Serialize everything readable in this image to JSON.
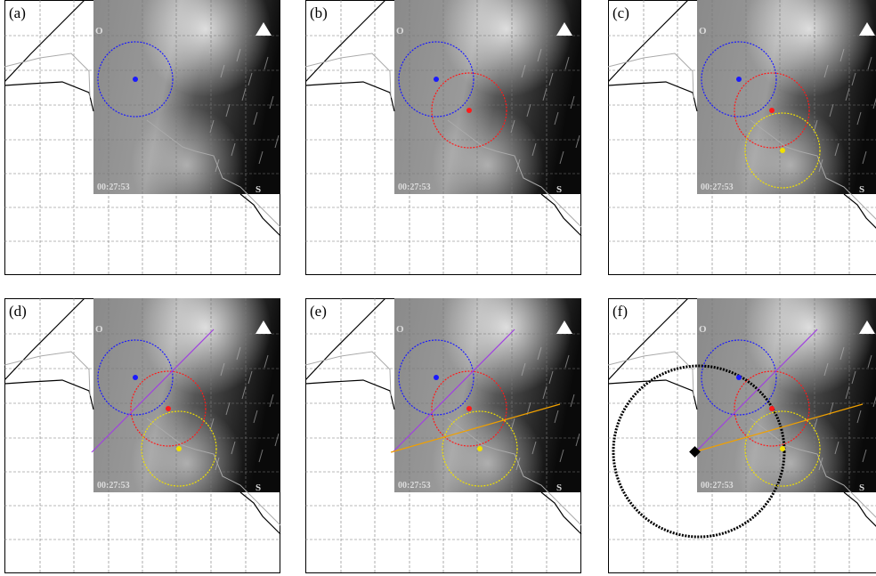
{
  "panels": [
    {
      "label": "(a)",
      "time": "00:27:53",
      "top_marker": "O",
      "bottom_marker": "S"
    },
    {
      "label": "(b)",
      "time": "00:27:53",
      "top_marker": "O",
      "bottom_marker": "S"
    },
    {
      "label": "(c)",
      "time": "00:27:53",
      "top_marker": "O",
      "bottom_marker": "S"
    },
    {
      "label": "(d)",
      "time": "00:27:53",
      "top_marker": "O",
      "bottom_marker": "S"
    },
    {
      "label": "(e)",
      "time": "00:27:53",
      "top_marker": "O",
      "bottom_marker": "S"
    },
    {
      "label": "(f)",
      "time": "00:27:53",
      "top_marker": "O",
      "bottom_marker": "S"
    }
  ]
}
